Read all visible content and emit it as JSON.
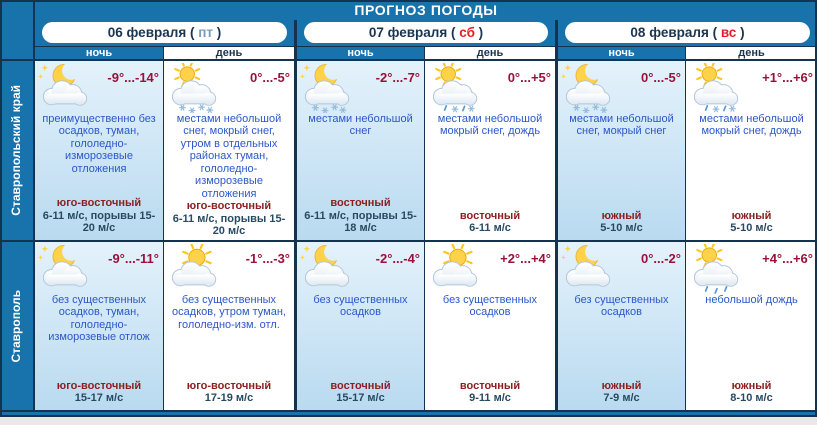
{
  "title": "ПРОГНОЗ ПОГОДЫ",
  "columns": {
    "night": "ночь",
    "day": "день"
  },
  "days": [
    {
      "date": "06 февраля",
      "dow": "пт",
      "dow_color": "#7b9cba"
    },
    {
      "date": "07 февраля",
      "dow": "сб",
      "dow_color": "#e31e24"
    },
    {
      "date": "08 февраля",
      "dow": "вс",
      "dow_color": "#e31e24"
    }
  ],
  "regions": [
    {
      "name": "Ставропольский край",
      "cells": [
        {
          "period": "night",
          "icon": "moon-cloud",
          "temp": "-9°...-14°",
          "desc": "преимущественно без осадков, туман, гололедно-изморозевые отложения",
          "wind_dir": "юго-восточный",
          "wind_speed": "6-11 м/с, порывы 15-20 м/с"
        },
        {
          "period": "day",
          "icon": "sun-cloud-snow",
          "temp": "0°...-5°",
          "desc": "местами небольшой снег, мокрый снег, утром в отдельных районах туман, гололедно-изморозевые отложения",
          "wind_dir": "юго-восточный",
          "wind_speed": "6-11 м/с, порывы 15-20 м/с"
        },
        {
          "period": "night",
          "icon": "moon-cloud-snow",
          "temp": "-2°...-7°",
          "desc": "местами небольшой снег",
          "wind_dir": "восточный",
          "wind_speed": "6-11 м/с, порывы 15-18 м/с"
        },
        {
          "period": "day",
          "icon": "sun-cloud-sleet",
          "temp": "0°...+5°",
          "desc": "местами небольшой мокрый снег, дождь",
          "wind_dir": "восточный",
          "wind_speed": "6-11 м/с"
        },
        {
          "period": "night",
          "icon": "moon-cloud-snow",
          "temp": "0°...-5°",
          "desc": "местами небольшой снег, мокрый снег",
          "wind_dir": "южный",
          "wind_speed": "5-10 м/с"
        },
        {
          "period": "day",
          "icon": "sun-cloud-sleet",
          "temp": "+1°...+6°",
          "desc": "местами небольшой мокрый снег, дождь",
          "wind_dir": "южный",
          "wind_speed": "5-10 м/с"
        }
      ]
    },
    {
      "name": "Ставрополь",
      "cells": [
        {
          "period": "night",
          "icon": "moon-cloud",
          "temp": "-9°...-11°",
          "desc": "без существенных осадков, туман, гололедно-изморозевые отлож",
          "wind_dir": "юго-восточный",
          "wind_speed": "15-17 м/с"
        },
        {
          "period": "day",
          "icon": "sun-cloud",
          "temp": "-1°...-3°",
          "desc": "без существенных осадков, утром туман, гололедно-изм. отл.",
          "wind_dir": "юго-восточный",
          "wind_speed": "17-19 м/с"
        },
        {
          "period": "night",
          "icon": "moon-cloud",
          "temp": "-2°...-4°",
          "desc": "без существенных осадков",
          "wind_dir": "восточный",
          "wind_speed": "15-17 м/с"
        },
        {
          "period": "day",
          "icon": "sun-cloud",
          "temp": "+2°...+4°",
          "desc": "без существенных осадков",
          "wind_dir": "восточный",
          "wind_speed": "9-11 м/с"
        },
        {
          "period": "night",
          "icon": "moon-cloud",
          "temp": "0°...-2°",
          "desc": "без существенных осадков",
          "wind_dir": "южный",
          "wind_speed": "7-9 м/с"
        },
        {
          "period": "day",
          "icon": "sun-cloud-rain",
          "temp": "+4°...+6°",
          "desc": "небольшой дождь",
          "wind_dir": "южный",
          "wind_speed": "8-10 м/с"
        }
      ]
    }
  ],
  "colors": {
    "header_blue": "#1873ad",
    "border_dark": "#15334e",
    "temperature": "#991238",
    "description": "#2b57c8",
    "wind_direction": "#8b2020",
    "wind_speed": "#274a63",
    "night_cell": "#bfdef5",
    "day_cell": "#ffffff",
    "weekend_red": "#e31e24",
    "friday_blue": "#7b9cba",
    "page_bg": "#e9e9e9"
  }
}
